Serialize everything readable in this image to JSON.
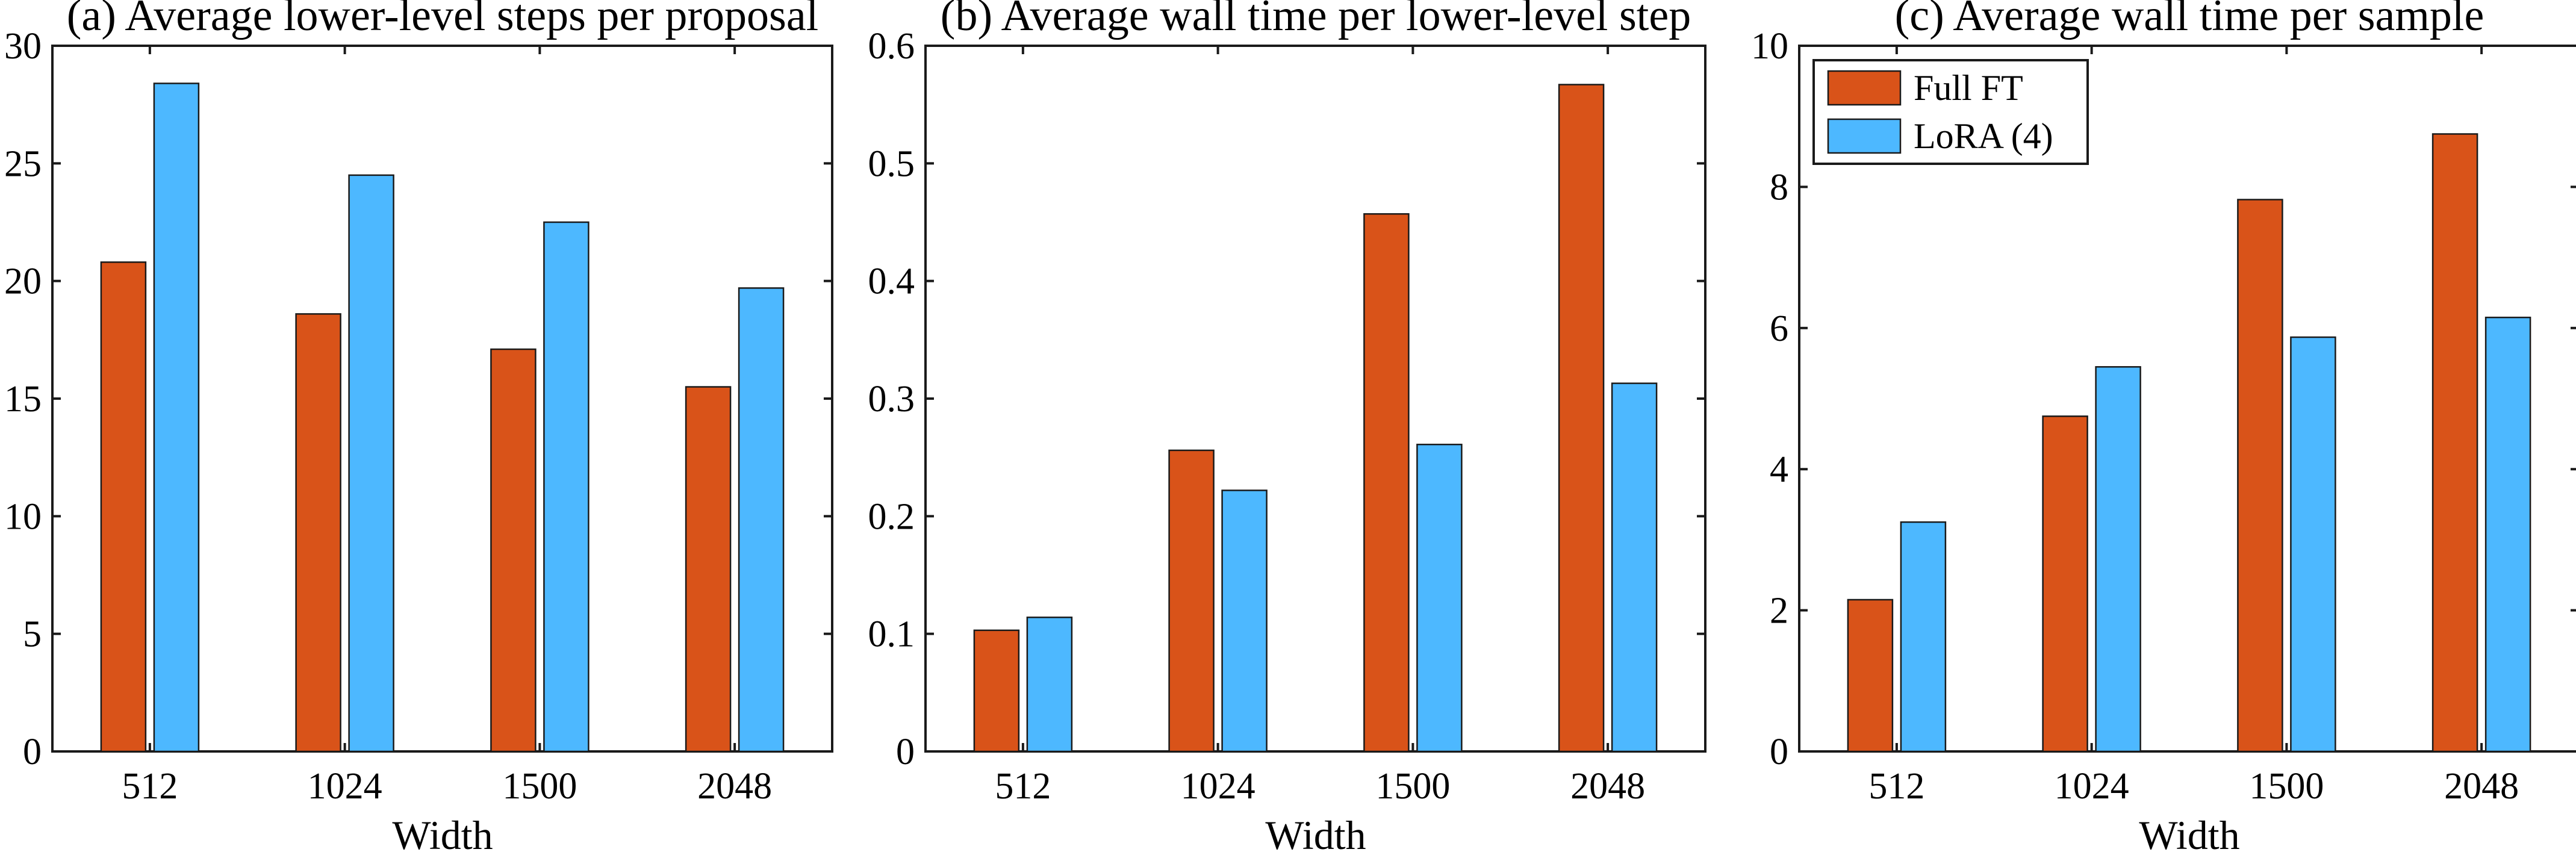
{
  "chart_data": [
    {
      "type": "bar",
      "panel": "a",
      "title": "(a) Average lower-level steps per proposal",
      "categories": [
        "512",
        "1024",
        "1500",
        "2048"
      ],
      "xlabel": "Width",
      "ylabel": "",
      "ylim": [
        0,
        30
      ],
      "yticks": [
        0,
        5,
        10,
        15,
        20,
        25,
        30
      ],
      "ytick_labels": [
        "0",
        "5",
        "10",
        "15",
        "20",
        "25",
        "30"
      ],
      "series": [
        {
          "name": "Full FT",
          "color": "#d95319",
          "values": [
            20.8,
            18.6,
            17.1,
            15.5
          ]
        },
        {
          "name": "LoRA (4)",
          "color": "#4db8ff",
          "values": [
            28.4,
            24.5,
            22.5,
            19.7
          ]
        }
      ],
      "legend": null
    },
    {
      "type": "bar",
      "panel": "b",
      "title": "(b) Average wall time per lower-level step",
      "categories": [
        "512",
        "1024",
        "1500",
        "2048"
      ],
      "xlabel": "Width",
      "ylabel": "",
      "ylim": [
        0,
        0.6
      ],
      "yticks": [
        0,
        0.1,
        0.2,
        0.3,
        0.4,
        0.5,
        0.6
      ],
      "ytick_labels": [
        "0",
        "0.1",
        "0.2",
        "0.3",
        "0.4",
        "0.5",
        "0.6"
      ],
      "series": [
        {
          "name": "Full FT",
          "color": "#d95319",
          "values": [
            0.103,
            0.256,
            0.457,
            0.567
          ]
        },
        {
          "name": "LoRA (4)",
          "color": "#4db8ff",
          "values": [
            0.114,
            0.222,
            0.261,
            0.313
          ]
        }
      ],
      "legend": null
    },
    {
      "type": "bar",
      "panel": "c",
      "title": "(c) Average wall time per sample",
      "categories": [
        "512",
        "1024",
        "1500",
        "2048"
      ],
      "xlabel": "Width",
      "ylabel": "",
      "ylim": [
        0,
        10
      ],
      "yticks": [
        0,
        2,
        4,
        6,
        8,
        10
      ],
      "ytick_labels": [
        "0",
        "2",
        "4",
        "6",
        "8",
        "10"
      ],
      "series": [
        {
          "name": "Full FT",
          "color": "#d95319",
          "values": [
            2.15,
            4.75,
            7.82,
            8.75
          ]
        },
        {
          "name": "LoRA (4)",
          "color": "#4db8ff",
          "values": [
            3.25,
            5.45,
            5.87,
            6.15
          ]
        }
      ],
      "legend": {
        "placement": "top-left",
        "entries": [
          "Full FT",
          "LoRA (4)"
        ]
      }
    }
  ]
}
